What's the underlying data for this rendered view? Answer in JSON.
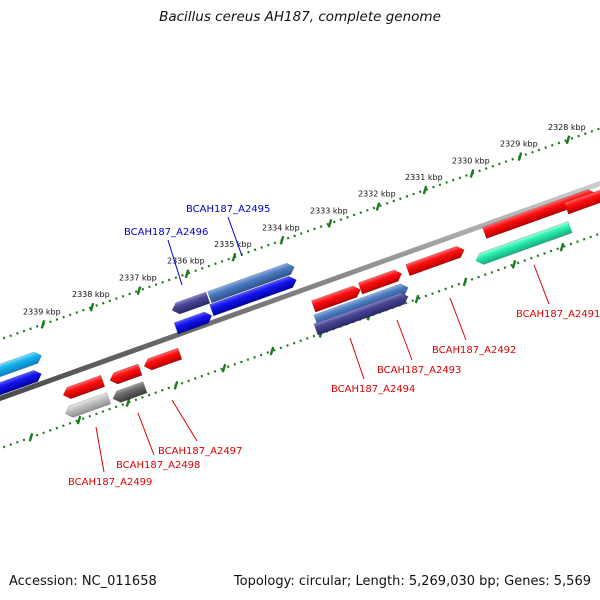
{
  "title": "Bacillus cereus AH187, complete genome",
  "footer": {
    "accession": "Accession: NC_011658",
    "summary": "Topology: circular; Length: 5,269,030 bp; Genes: 5,569"
  },
  "colors": {
    "backbone": "#808080",
    "tick_mark": "#1e7a1e",
    "forward_label": "#0000cc",
    "reverse_label": "#dd0000"
  },
  "scale_ticks": [
    "2328 kbp",
    "2329 kbp",
    "2330 kbp",
    "2331 kbp",
    "2332 kbp",
    "2333 kbp",
    "2334 kbp",
    "2335 kbp",
    "2336 kbp",
    "2337 kbp",
    "2338 kbp",
    "2339 kbp"
  ],
  "gene_labels": [
    {
      "name": "BCAH187_A2491",
      "strand": "reverse"
    },
    {
      "name": "BCAH187_A2492",
      "strand": "reverse"
    },
    {
      "name": "BCAH187_A2493",
      "strand": "reverse"
    },
    {
      "name": "BCAH187_A2494",
      "strand": "reverse"
    },
    {
      "name": "BCAH187_A2495",
      "strand": "forward"
    },
    {
      "name": "BCAH187_A2496",
      "strand": "forward"
    },
    {
      "name": "BCAH187_A2497",
      "strand": "reverse"
    },
    {
      "name": "BCAH187_A2498",
      "strand": "reverse"
    },
    {
      "name": "BCAH187_A2499",
      "strand": "reverse"
    }
  ]
}
